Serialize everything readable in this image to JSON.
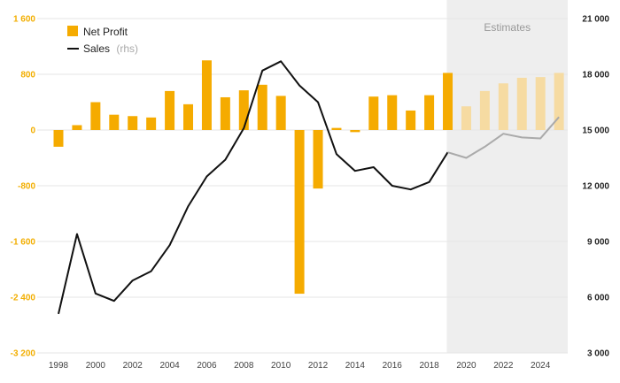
{
  "chart_data": {
    "type": "bar+line",
    "x": [
      1998,
      1999,
      2000,
      2001,
      2002,
      2003,
      2004,
      2005,
      2006,
      2007,
      2008,
      2009,
      2010,
      2011,
      2012,
      2013,
      2014,
      2015,
      2016,
      2017,
      2018,
      2019,
      2020,
      2021,
      2022,
      2023,
      2024,
      2025
    ],
    "x_ticks": [
      "1998",
      "2000",
      "2002",
      "2004",
      "2006",
      "2008",
      "2010",
      "2012",
      "2014",
      "2016",
      "2018",
      "2020",
      "2022",
      "2024"
    ],
    "series": [
      {
        "name": "Net Profit",
        "type": "bar",
        "axis": "left",
        "color": "#f5ab00",
        "estimate_color": "#f6dba2",
        "values": [
          -240,
          70,
          400,
          220,
          200,
          180,
          560,
          370,
          1000,
          470,
          570,
          650,
          490,
          -2350,
          -840,
          30,
          -30,
          480,
          500,
          280,
          500,
          820,
          340,
          560,
          670,
          750,
          760,
          820
        ]
      },
      {
        "name": "Sales",
        "name_suffix": "(rhs)",
        "type": "line",
        "axis": "right",
        "color": "#111111",
        "estimate_color": "#aaaaaa",
        "values": [
          5100,
          9400,
          6200,
          5800,
          6900,
          7400,
          8800,
          10900,
          12500,
          13400,
          15100,
          18200,
          18700,
          17400,
          16500,
          13700,
          12800,
          13000,
          12000,
          11800,
          12200,
          13800,
          13500,
          14100,
          14800,
          14600,
          14550,
          15700
        ]
      }
    ],
    "estimates": {
      "label": "Estimates",
      "start_year": 2019
    },
    "left_axis": {
      "ticks": [
        "1 600",
        "800",
        "0",
        "-800",
        "-1 600",
        "-2 400",
        "-3 200"
      ],
      "min": -3200,
      "max": 1600
    },
    "right_axis": {
      "ticks": [
        "21 000",
        "18 000",
        "15 000",
        "12 000",
        "9 000",
        "6 000",
        "3 000"
      ],
      "min": 3000,
      "max": 21000
    },
    "legend": {
      "position": "top-left"
    },
    "grid": true
  }
}
